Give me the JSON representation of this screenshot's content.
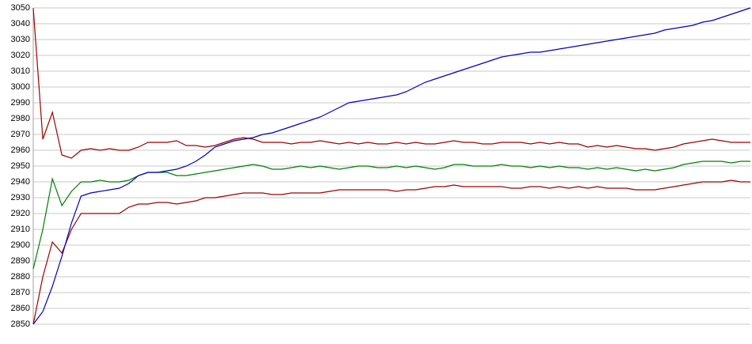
{
  "chart_data": {
    "type": "line",
    "ylim": [
      2850,
      3050
    ],
    "yticks": [
      2850,
      2860,
      2870,
      2880,
      2890,
      2900,
      2910,
      2920,
      2930,
      2940,
      2950,
      2960,
      2970,
      2980,
      2990,
      3000,
      3010,
      3020,
      3030,
      3040,
      3050
    ],
    "grid": true,
    "series": [
      {
        "color": "#a00000",
        "values": [
          3050,
          2967,
          2984,
          2957,
          2955,
          2960,
          2961,
          2960,
          2961,
          2960,
          2960,
          2962,
          2965,
          2965,
          2965,
          2966,
          2963,
          2963,
          2962,
          2963,
          2965,
          2967,
          2968,
          2967,
          2965,
          2965,
          2965,
          2964,
          2965,
          2965,
          2966,
          2965,
          2964,
          2965,
          2964,
          2965,
          2964,
          2964,
          2965,
          2964,
          2965,
          2964,
          2964,
          2965,
          2966,
          2965,
          2965,
          2964,
          2964,
          2965,
          2965,
          2965,
          2964,
          2965,
          2964,
          2965,
          2964,
          2964,
          2962,
          2963,
          2962,
          2963,
          2962,
          2961,
          2961,
          2960,
          2961,
          2962,
          2964,
          2965,
          2966,
          2967,
          2966,
          2965,
          2965,
          2965
        ]
      },
      {
        "color": "#008000",
        "values": [
          2885,
          2910,
          2942,
          2925,
          2934,
          2940,
          2940,
          2941,
          2940,
          2940,
          2941,
          2944,
          2946,
          2946,
          2946,
          2944,
          2944,
          2945,
          2946,
          2947,
          2948,
          2949,
          2950,
          2951,
          2950,
          2948,
          2948,
          2949,
          2950,
          2949,
          2950,
          2949,
          2948,
          2949,
          2950,
          2950,
          2949,
          2949,
          2950,
          2949,
          2950,
          2949,
          2948,
          2949,
          2951,
          2951,
          2950,
          2950,
          2950,
          2951,
          2950,
          2950,
          2949,
          2950,
          2949,
          2950,
          2949,
          2949,
          2948,
          2949,
          2948,
          2949,
          2948,
          2947,
          2948,
          2947,
          2948,
          2949,
          2951,
          2952,
          2953,
          2953,
          2953,
          2952,
          2953,
          2953
        ]
      },
      {
        "color": "#a00000",
        "values": [
          2850,
          2880,
          2902,
          2895,
          2910,
          2920,
          2920,
          2920,
          2920,
          2920,
          2924,
          2926,
          2926,
          2927,
          2927,
          2926,
          2927,
          2928,
          2930,
          2930,
          2931,
          2932,
          2933,
          2933,
          2933,
          2932,
          2932,
          2933,
          2933,
          2933,
          2933,
          2934,
          2935,
          2935,
          2935,
          2935,
          2935,
          2935,
          2934,
          2935,
          2935,
          2936,
          2937,
          2937,
          2938,
          2937,
          2937,
          2937,
          2937,
          2937,
          2936,
          2936,
          2937,
          2937,
          2936,
          2937,
          2936,
          2937,
          2936,
          2937,
          2936,
          2936,
          2936,
          2935,
          2935,
          2935,
          2936,
          2937,
          2938,
          2939,
          2940,
          2940,
          2940,
          2941,
          2940,
          2940
        ]
      },
      {
        "color": "#0000c0",
        "values": [
          2850,
          2858,
          2874,
          2893,
          2914,
          2931,
          2933,
          2934,
          2935,
          2936,
          2939,
          2944,
          2946,
          2946,
          2947,
          2948,
          2950,
          2953,
          2957,
          2962,
          2964,
          2966,
          2967,
          2968,
          2970,
          2971,
          2973,
          2975,
          2977,
          2979,
          2981,
          2984,
          2987,
          2990,
          2991,
          2992,
          2993,
          2994,
          2995,
          2997,
          3000,
          3003,
          3005,
          3007,
          3009,
          3011,
          3013,
          3015,
          3017,
          3019,
          3020,
          3021,
          3022,
          3022,
          3023,
          3024,
          3025,
          3026,
          3027,
          3028,
          3029,
          3030,
          3031,
          3032,
          3033,
          3034,
          3036,
          3037,
          3038,
          3039,
          3041,
          3042,
          3044,
          3046,
          3048,
          3050
        ]
      }
    ]
  }
}
